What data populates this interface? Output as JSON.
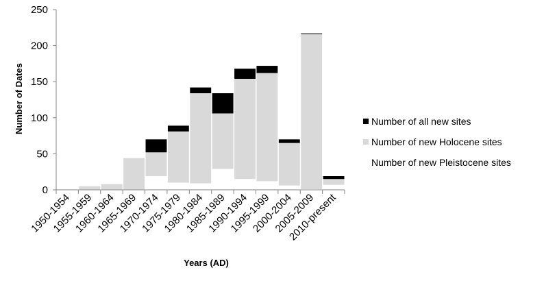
{
  "chart_data": {
    "type": "bar",
    "stacked": true,
    "title": "",
    "xlabel": "Years (AD)",
    "ylabel": "Number of Dates",
    "ylim": [
      0,
      250
    ],
    "yticks": [
      0,
      50,
      100,
      150,
      200,
      250
    ],
    "grid": false,
    "legend_position": "right",
    "categories": [
      "1950-1954",
      "1955-1959",
      "1960-1964",
      "1965-1969",
      "1970-1974",
      "1975-1979",
      "1980-1984",
      "1985-1989",
      "1990-1994",
      "1995-1999",
      "2000-2004",
      "2005-2009",
      "2010-present"
    ],
    "series": [
      {
        "name": "Number of new Pleistocene sites",
        "color": "#ffffff",
        "values": [
          0,
          0,
          0,
          0,
          19,
          10,
          9,
          29,
          15,
          12,
          6,
          1,
          7
        ]
      },
      {
        "name": "Number of new Holocene sites",
        "color": "#d9d9d9",
        "values": [
          0,
          5,
          8,
          44,
          33,
          71,
          125,
          77,
          139,
          150,
          59,
          215,
          8
        ]
      },
      {
        "name": "Number of all new sites",
        "color": "#000000",
        "values": [
          0,
          0,
          0,
          0,
          18,
          8,
          8,
          28,
          14,
          10,
          5,
          1,
          4
        ]
      }
    ],
    "legend_order": [
      "Number of all new sites",
      "Number of new Holocene sites",
      "Number of new Pleistocene sites"
    ]
  }
}
